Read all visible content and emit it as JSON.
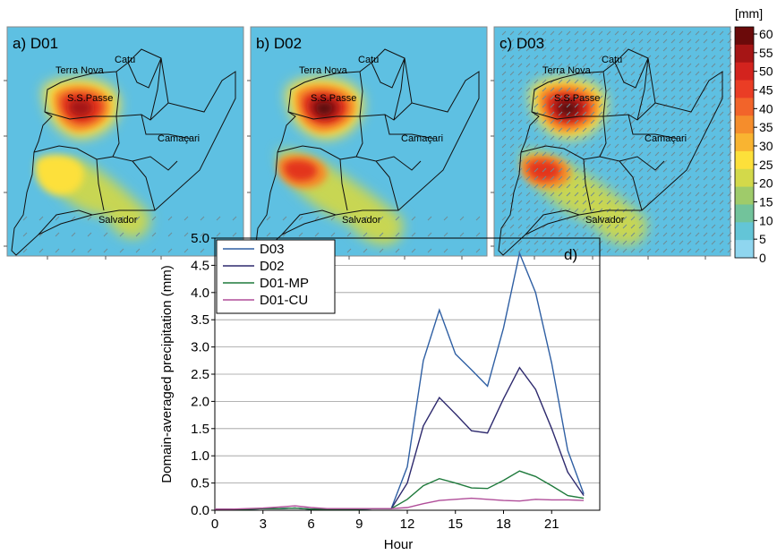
{
  "panels": [
    {
      "label": "a) D01"
    },
    {
      "label": "b) D02"
    },
    {
      "label": "c) D03"
    }
  ],
  "place_names": {
    "catu": "Catu",
    "terra_nova": "Terra Nova",
    "ss_passe": "S.S.Passe",
    "camacari": "Camaçari",
    "salvador": "Salvador"
  },
  "colorbar": {
    "unit": "[mm]",
    "ticks": [
      "60",
      "55",
      "50",
      "45",
      "40",
      "35",
      "30",
      "25",
      "20",
      "15",
      "10",
      "5",
      "0"
    ],
    "colors": [
      "#6b0a0a",
      "#a61515",
      "#d3231e",
      "#ea3d25",
      "#f2642a",
      "#f58d2c",
      "#f9b431",
      "#fde03a",
      "#d3d94a",
      "#9fcb6a",
      "#72c39b",
      "#63c5d7",
      "#8fd6ef"
    ],
    "map_background": "#5ec0e2"
  },
  "chart_data": {
    "type": "line",
    "panel_label": "d)",
    "xlabel": "Hour",
    "ylabel": "Domain-averaged precipitation (mm)",
    "xlim": [
      0,
      24
    ],
    "ylim": [
      0,
      5
    ],
    "x_ticks": [
      0,
      3,
      6,
      9,
      12,
      15,
      18,
      21
    ],
    "y_ticks": [
      "0.0",
      "0.5",
      "1.0",
      "1.5",
      "2.0",
      "2.5",
      "3.0",
      "3.5",
      "4.0",
      "4.5",
      "5.0"
    ],
    "grid": true,
    "legend_position": "top-left",
    "x": [
      0,
      1,
      2,
      3,
      4,
      5,
      6,
      7,
      8,
      9,
      10,
      11,
      12,
      13,
      14,
      15,
      16,
      17,
      18,
      19,
      20,
      21,
      22,
      23
    ],
    "series": [
      {
        "name": "D03",
        "color": "#2f5fa3",
        "values": [
          0.02,
          0.02,
          0.02,
          0.03,
          0.03,
          0.04,
          0.02,
          0.02,
          0.02,
          0.02,
          0.03,
          0.03,
          0.8,
          2.75,
          3.68,
          2.87,
          2.58,
          2.28,
          3.35,
          4.72,
          4.0,
          2.7,
          1.1,
          0.3
        ]
      },
      {
        "name": "D02",
        "color": "#2e2a6e",
        "values": [
          0.02,
          0.02,
          0.02,
          0.03,
          0.03,
          0.04,
          0.02,
          0.02,
          0.02,
          0.02,
          0.03,
          0.03,
          0.5,
          1.55,
          2.07,
          1.77,
          1.46,
          1.42,
          2.05,
          2.62,
          2.22,
          1.5,
          0.7,
          0.27
        ]
      },
      {
        "name": "D01-MP",
        "color": "#1f7a3c",
        "values": [
          0.02,
          0.02,
          0.02,
          0.03,
          0.03,
          0.04,
          0.02,
          0.02,
          0.02,
          0.02,
          0.03,
          0.03,
          0.2,
          0.45,
          0.58,
          0.5,
          0.41,
          0.4,
          0.55,
          0.72,
          0.62,
          0.45,
          0.27,
          0.22
        ]
      },
      {
        "name": "D01-CU",
        "color": "#b04d99",
        "values": [
          0.02,
          0.02,
          0.03,
          0.04,
          0.06,
          0.08,
          0.05,
          0.03,
          0.03,
          0.03,
          0.03,
          0.03,
          0.05,
          0.12,
          0.18,
          0.2,
          0.22,
          0.2,
          0.18,
          0.17,
          0.2,
          0.19,
          0.19,
          0.18
        ]
      }
    ]
  }
}
